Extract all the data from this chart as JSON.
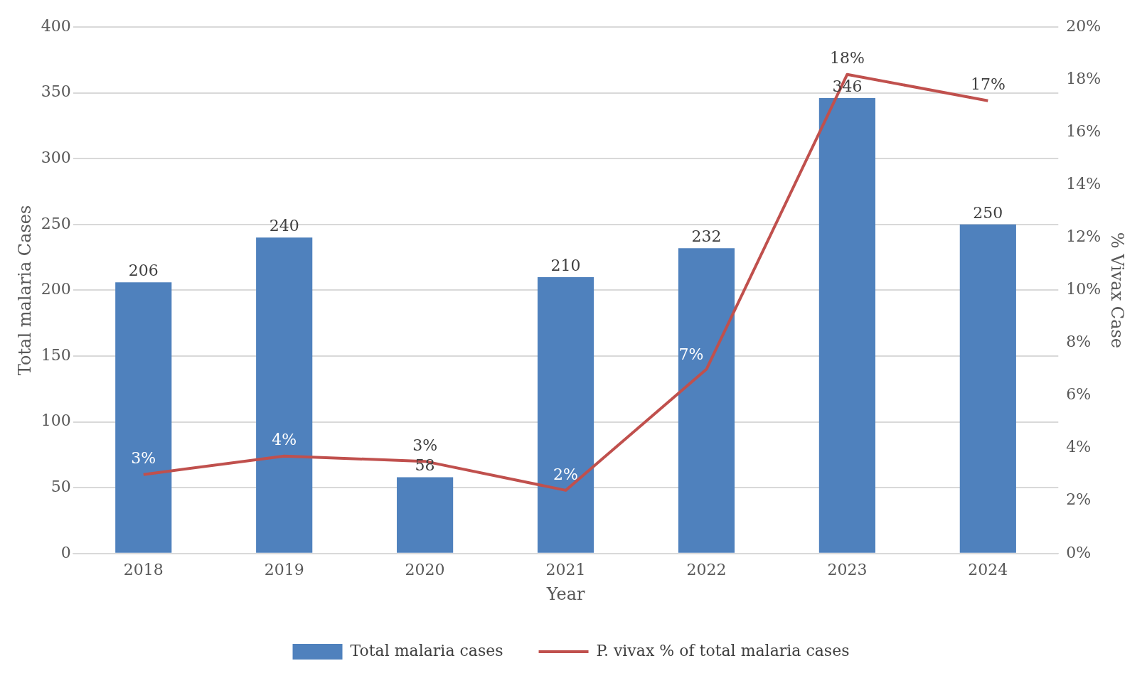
{
  "chart_data": {
    "type": "bar",
    "xlabel": "Year",
    "ylabel": "Total malaria Cases",
    "y2label": "% Vivax Case",
    "categories": [
      "2018",
      "2019",
      "2020",
      "2021",
      "2022",
      "2023",
      "2024"
    ],
    "series": [
      {
        "name": "Total malaria cases",
        "color": "#4f81bd",
        "values": [
          206,
          240,
          58,
          210,
          232,
          346,
          250
        ]
      },
      {
        "name": "P. vivax % of total malaria cases",
        "type": "line",
        "axis": "y2",
        "color": "#c0504d",
        "values": [
          3.0,
          3.7,
          3.5,
          2.4,
          7.0,
          18.2,
          17.2
        ],
        "value_labels": [
          "3%",
          "4%",
          "3%",
          "2%",
          "7%",
          "18%",
          "17%"
        ]
      }
    ],
    "data_labels": true,
    "ylim": [
      0,
      400
    ],
    "yticks": [
      0,
      50,
      100,
      150,
      200,
      250,
      300,
      350,
      400
    ],
    "y2lim": [
      0,
      20
    ],
    "y2ticks": [
      {
        "value": 0,
        "label": "0%"
      },
      {
        "value": 2,
        "label": "2%"
      },
      {
        "value": 4,
        "label": "4%"
      },
      {
        "value": 6,
        "label": "6%"
      },
      {
        "value": 8,
        "label": "8%"
      },
      {
        "value": 10,
        "label": "10%"
      },
      {
        "value": 12,
        "label": "12%"
      },
      {
        "value": 14,
        "label": "14%"
      },
      {
        "value": 16,
        "label": "16%"
      },
      {
        "value": 18,
        "label": "18%"
      },
      {
        "value": 20,
        "label": "20%"
      }
    ],
    "grid": "y",
    "legend": "bottom"
  }
}
